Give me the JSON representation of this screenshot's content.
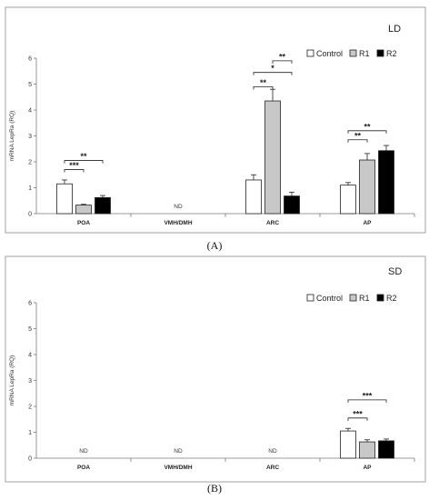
{
  "colors": {
    "Control": "#ffffff",
    "R1": "#c8c8c8",
    "R2": "#000000"
  },
  "chart_data": [
    {
      "type": "bar",
      "title": "LD",
      "caption": "(A)",
      "ylabel": "mRNA LepRa (RQ)",
      "ylim": [
        0,
        6
      ],
      "yticks": [
        0,
        1,
        2,
        3,
        4,
        5,
        6
      ],
      "categories": [
        "POA",
        "VMH/DMH",
        "ARC",
        "AP"
      ],
      "legend": "top-right",
      "series": [
        {
          "name": "Control",
          "values": [
            1.15,
            null,
            1.3,
            1.1
          ],
          "errors": [
            0.15,
            null,
            0.2,
            0.1
          ]
        },
        {
          "name": "R1",
          "values": [
            0.33,
            null,
            4.35,
            2.07
          ],
          "errors": [
            0.03,
            null,
            0.45,
            0.25
          ]
        },
        {
          "name": "R2",
          "values": [
            0.62,
            null,
            0.68,
            2.43
          ],
          "errors": [
            0.08,
            null,
            0.15,
            0.2
          ]
        }
      ],
      "nd_labels": [
        {
          "category": "VMH/DMH",
          "text": "ND"
        }
      ],
      "significance": [
        {
          "category": "POA",
          "from": "Control",
          "to": "R1",
          "label": "***",
          "level": 1.7
        },
        {
          "category": "POA",
          "from": "Control",
          "to": "R2",
          "label": "**",
          "level": 2.05
        },
        {
          "category": "ARC",
          "from": "Control",
          "to": "R1",
          "label": "**",
          "level": 4.9
        },
        {
          "category": "ARC",
          "from": "Control",
          "to": "R2",
          "label": "*",
          "level": 5.45
        },
        {
          "category": "ARC",
          "from": "R1",
          "to": "R2",
          "label": "**",
          "level": 5.9
        },
        {
          "category": "AP",
          "from": "Control",
          "to": "R1",
          "label": "**",
          "level": 2.85
        },
        {
          "category": "AP",
          "from": "Control",
          "to": "R2",
          "label": "**",
          "level": 3.2
        }
      ]
    },
    {
      "type": "bar",
      "title": "SD",
      "caption": "(B)",
      "ylabel": "mRNA LepRa (RQ)",
      "ylim": [
        0,
        6
      ],
      "yticks": [
        0,
        1,
        2,
        3,
        4,
        5,
        6
      ],
      "categories": [
        "POA",
        "VMH/DMH",
        "ARC",
        "AP"
      ],
      "legend": "top-right",
      "series": [
        {
          "name": "Control",
          "values": [
            null,
            null,
            null,
            1.05
          ],
          "errors": [
            null,
            null,
            null,
            0.1
          ]
        },
        {
          "name": "R1",
          "values": [
            null,
            null,
            null,
            0.63
          ],
          "errors": [
            null,
            null,
            null,
            0.08
          ]
        },
        {
          "name": "R2",
          "values": [
            null,
            null,
            null,
            0.67
          ],
          "errors": [
            null,
            null,
            null,
            0.07
          ]
        }
      ],
      "nd_labels": [
        {
          "category": "POA",
          "text": "ND"
        },
        {
          "category": "VMH/DMH",
          "text": "ND"
        },
        {
          "category": "ARC",
          "text": "ND"
        }
      ],
      "significance": [
        {
          "category": "AP",
          "from": "Control",
          "to": "R1",
          "label": "***",
          "level": 1.55
        },
        {
          "category": "AP",
          "from": "Control",
          "to": "R2",
          "label": "***",
          "level": 2.25
        }
      ]
    }
  ]
}
